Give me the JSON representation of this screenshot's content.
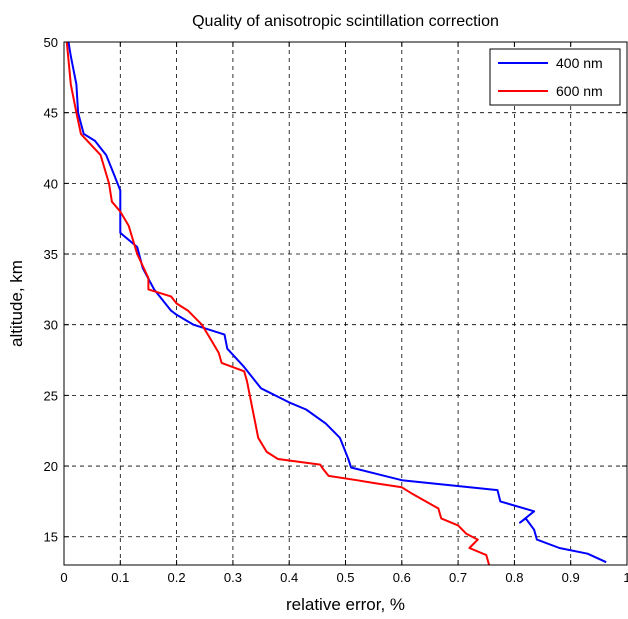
{
  "chart_data": {
    "type": "line",
    "title": "Quality of anisotropic scintillation correction",
    "xlabel": "relative error, %",
    "ylabel": "altitude, km",
    "xlim": [
      0,
      1
    ],
    "ylim": [
      13,
      50
    ],
    "xticks": [
      0,
      0.1,
      0.2,
      0.3,
      0.4,
      0.5,
      0.6,
      0.7,
      0.8,
      0.9,
      1
    ],
    "xtick_labels": [
      "0",
      "0.1",
      "0.2",
      "0.3",
      "0.4",
      "0.5",
      "0.6",
      "0.7",
      "0.8",
      "0.9",
      "1"
    ],
    "yticks": [
      15,
      20,
      25,
      30,
      35,
      40,
      45,
      50
    ],
    "ytick_labels": [
      "15",
      "20",
      "25",
      "30",
      "35",
      "40",
      "45",
      "50"
    ],
    "grid": true,
    "legend_position": "top-right",
    "series": [
      {
        "name": "400 nm",
        "color": "#0000ff",
        "x": [
          0.963,
          0.93,
          0.88,
          0.84,
          0.835,
          0.82,
          0.81,
          0.835,
          0.775,
          0.77,
          0.6,
          0.51,
          0.505,
          0.5,
          0.49,
          0.465,
          0.43,
          0.4,
          0.35,
          0.32,
          0.29,
          0.285,
          0.23,
          0.2,
          0.19,
          0.16,
          0.14,
          0.13,
          0.1,
          0.1,
          0.1,
          0.1,
          0.095,
          0.09,
          0.075,
          0.055,
          0.035,
          0.025,
          0.022,
          0.012,
          0.008
        ],
        "y": [
          13.2,
          13.8,
          14.2,
          14.8,
          15.5,
          16.3,
          16.0,
          16.8,
          17.5,
          18.3,
          19.0,
          19.9,
          20.5,
          21.0,
          22.0,
          23.0,
          24.0,
          24.5,
          25.5,
          27.0,
          28.3,
          29.3,
          30.0,
          30.7,
          31.0,
          32.5,
          34.0,
          35.5,
          36.5,
          37.0,
          38.0,
          39.5,
          40.0,
          40.5,
          42.0,
          43.0,
          43.5,
          45.0,
          47.0,
          49.0,
          50.0
        ]
      },
      {
        "name": "600 nm",
        "color": "#ff0000",
        "x": [
          0.755,
          0.75,
          0.72,
          0.735,
          0.715,
          0.7,
          0.67,
          0.665,
          0.62,
          0.6,
          0.55,
          0.52,
          0.47,
          0.46,
          0.455,
          0.38,
          0.36,
          0.345,
          0.34,
          0.335,
          0.33,
          0.325,
          0.32,
          0.28,
          0.275,
          0.26,
          0.245,
          0.22,
          0.2,
          0.19,
          0.15,
          0.15,
          0.13,
          0.115,
          0.1,
          0.085,
          0.08,
          0.065,
          0.03,
          0.022,
          0.012,
          0.005
        ],
        "y": [
          13.0,
          13.7,
          14.2,
          14.8,
          15.2,
          15.8,
          16.3,
          17.0,
          18.0,
          18.5,
          18.8,
          19.0,
          19.3,
          19.8,
          20.1,
          20.5,
          21.0,
          22.0,
          23.0,
          24.0,
          25.0,
          26.0,
          26.7,
          27.3,
          28.0,
          29.0,
          30.0,
          31.0,
          31.5,
          32.0,
          32.5,
          33.3,
          35.0,
          37.0,
          38.0,
          38.7,
          40.0,
          42.0,
          43.5,
          45.0,
          47.0,
          50.0
        ]
      }
    ]
  }
}
